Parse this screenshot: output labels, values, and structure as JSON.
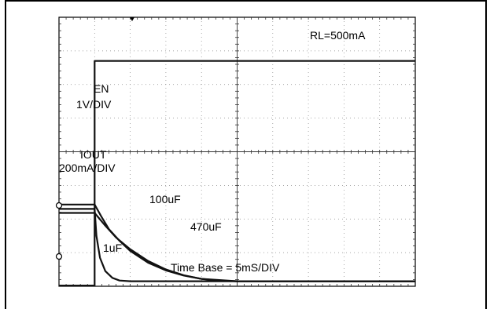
{
  "chart_data": {
    "type": "line",
    "title": "",
    "xlabel": "",
    "ylabel": "",
    "grid": true,
    "x_divisions": 10,
    "y_divisions": 8,
    "units": {
      "x": "div",
      "y": "div"
    },
    "xlim": [
      0,
      10
    ],
    "ylim": [
      0,
      8
    ],
    "annotations": {
      "load": "RL=500mA",
      "en_name": "EN",
      "en_scale": "1V/DIV",
      "iout_name": "IOUT",
      "iout_scale": "200mA/DIV",
      "cap_100": "100uF",
      "cap_470": "470uF",
      "cap_1": "1uF",
      "timebase": "Time Base = 5mS/DIV"
    },
    "series": [
      {
        "name": "EN",
        "x": [
          0,
          1.0,
          1.0,
          10
        ],
        "y": [
          0.02,
          0.02,
          6.7,
          6.7
        ]
      },
      {
        "name": "IOUT 100uF",
        "x": [
          0,
          1.0,
          1.2,
          1.4,
          1.7,
          2.0,
          2.5,
          3.0,
          3.5,
          4.0,
          5.0,
          10
        ],
        "y": [
          2.43,
          2.43,
          2.05,
          1.7,
          1.35,
          1.05,
          0.7,
          0.47,
          0.32,
          0.22,
          0.15,
          0.15
        ]
      },
      {
        "name": "IOUT 470uF",
        "x": [
          0,
          1.0,
          1.3,
          1.6,
          2.0,
          2.5,
          3.0,
          3.5,
          4.0,
          4.5,
          5.0,
          10
        ],
        "y": [
          2.18,
          2.18,
          1.8,
          1.45,
          1.1,
          0.75,
          0.5,
          0.33,
          0.22,
          0.17,
          0.15,
          0.15
        ]
      },
      {
        "name": "IOUT 1uF",
        "x": [
          0,
          1.0,
          1.05,
          1.15,
          1.3,
          1.5,
          1.7,
          2.0,
          10
        ],
        "y": [
          2.3,
          2.3,
          1.5,
          0.85,
          0.45,
          0.25,
          0.17,
          0.15,
          0.15
        ]
      }
    ]
  }
}
